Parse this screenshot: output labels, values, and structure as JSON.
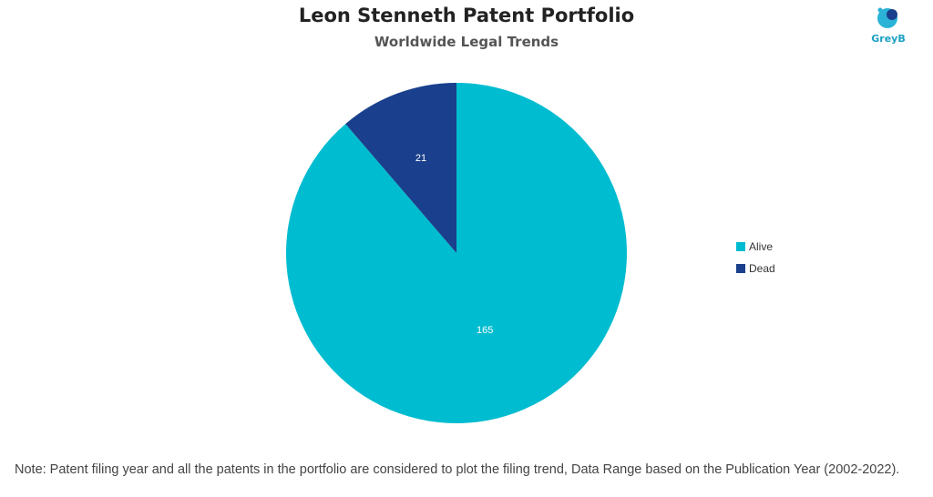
{
  "header": {
    "title": "Leon Stenneth Patent Portfolio",
    "subtitle": "Worldwide Legal Trends"
  },
  "logo": {
    "text": "GreyB",
    "icon": "greyb-logo-icon"
  },
  "chart_data": {
    "type": "pie",
    "title": "Leon Stenneth Patent Portfolio",
    "subtitle": "Worldwide Legal Trends",
    "slices": [
      {
        "label": "Alive",
        "value": 165,
        "color": "#00bcd0"
      },
      {
        "label": "Dead",
        "value": 21,
        "color": "#1a3f8c"
      }
    ],
    "legend_position": "right"
  },
  "legend": {
    "items": [
      {
        "label": "Alive",
        "color": "#00bcd0"
      },
      {
        "label": "Dead",
        "color": "#1a3f8c"
      }
    ]
  },
  "note": "Note: Patent filing year and all the patents in the portfolio are considered to plot the filing trend, Data Range based on the Publication Year (2002-2022)."
}
